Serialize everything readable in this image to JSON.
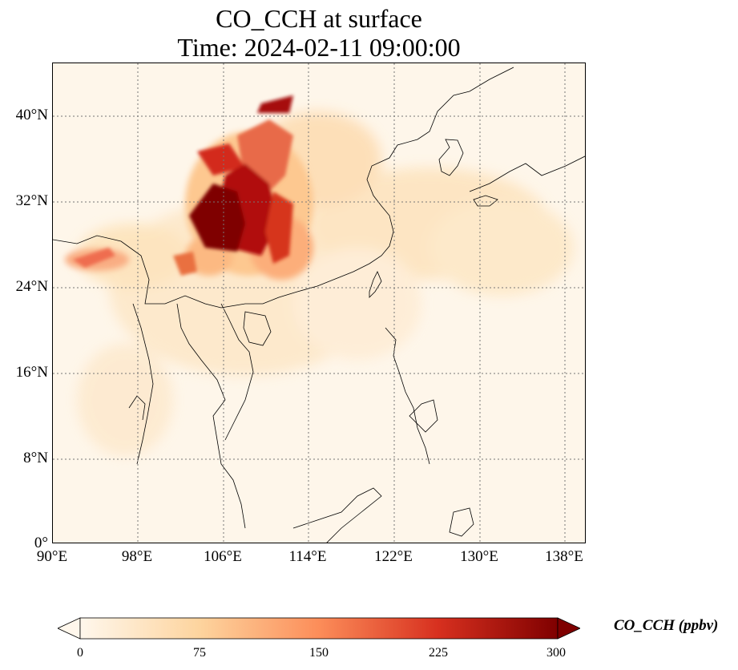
{
  "title": {
    "line1": "CO_CCH at surface",
    "line2": "Time: 2024-02-11 09:00:00"
  },
  "map": {
    "lat_ticks": [
      "40°N",
      "32°N",
      "24°N",
      "16°N",
      "8°N",
      "0°"
    ],
    "lon_ticks": [
      "90°E",
      "98°E",
      "106°E",
      "114°E",
      "122°E",
      "130°E",
      "138°E"
    ],
    "extent": {
      "lon": [
        90,
        140
      ],
      "lat": [
        0,
        45
      ]
    },
    "gridlines": true,
    "gridline_style": "dotted",
    "colormap": "OrRd"
  },
  "colorbar": {
    "label": "CO_CCH (ppbv)",
    "ticks": [
      "0",
      "75",
      "150",
      "225",
      "300"
    ],
    "range": [
      0,
      300
    ],
    "extend": "both",
    "colors": [
      "#fff7ec",
      "#fdd49e",
      "#fc8d59",
      "#d7301f",
      "#7f0000"
    ]
  }
}
